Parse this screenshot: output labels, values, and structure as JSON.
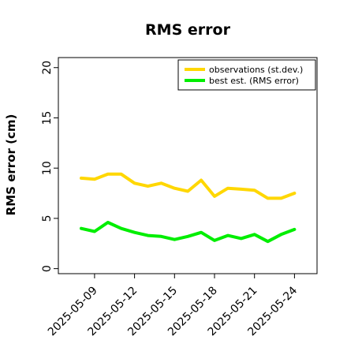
{
  "chart_data": {
    "type": "line",
    "title": "RMS error",
    "ylabel": "RMS error (cm)",
    "xlabel": "",
    "ylim": [
      -0.5,
      21
    ],
    "yticks": [
      0,
      5,
      10,
      15,
      20
    ],
    "x": [
      "2025-05-08",
      "2025-05-09",
      "2025-05-10",
      "2025-05-11",
      "2025-05-12",
      "2025-05-13",
      "2025-05-14",
      "2025-05-15",
      "2025-05-16",
      "2025-05-17",
      "2025-05-18",
      "2025-05-19",
      "2025-05-20",
      "2025-05-21",
      "2025-05-22",
      "2025-05-23",
      "2025-05-24"
    ],
    "xticks": [
      {
        "label": "2025-05-09",
        "color": "#000000"
      },
      {
        "label": "2025-05-12",
        "color": "#000000"
      },
      {
        "label": "2025-05-15",
        "color": "#228B22"
      },
      {
        "label": "2025-05-18",
        "color": "#000000"
      },
      {
        "label": "2025-05-21",
        "color": "#000000"
      },
      {
        "label": "2025-05-24",
        "color": "#000000"
      }
    ],
    "series": [
      {
        "name": "observations (st.dev.)",
        "color": "#FFD700",
        "values": [
          9.0,
          8.9,
          9.4,
          9.4,
          8.5,
          8.2,
          8.5,
          8.0,
          7.7,
          8.8,
          7.2,
          8.0,
          7.9,
          7.8,
          7.0,
          7.0,
          7.5
        ]
      },
      {
        "name": "best est. (RMS error)",
        "color": "#00EE00",
        "values": [
          4.0,
          3.7,
          4.6,
          4.0,
          3.6,
          3.3,
          3.2,
          2.9,
          3.2,
          3.6,
          2.8,
          3.3,
          3.0,
          3.4,
          2.7,
          3.4,
          3.9
        ]
      }
    ],
    "legend": "top-right",
    "grid": false
  }
}
